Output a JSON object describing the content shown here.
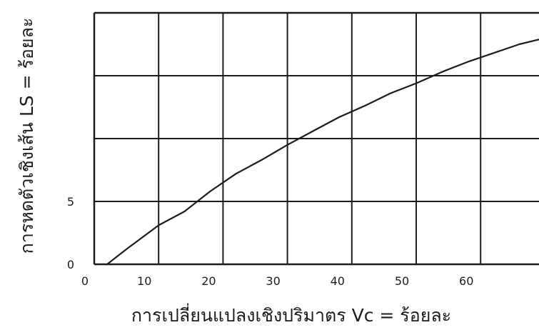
{
  "chart_data": {
    "type": "line",
    "title": "",
    "xlabel": "การเปลี่ยนแปลงเชิงปริมาตร   Vc = ร้อยละ",
    "ylabel": "การหดตัวเชิงเส้น     LS = ร้อยละ",
    "xlim": [
      0,
      70
    ],
    "ylim": [
      0,
      20
    ],
    "x_ticks": [
      0,
      10,
      20,
      30,
      40,
      50,
      60
    ],
    "y_ticks": [
      {
        "value": 0,
        "label": "0"
      },
      {
        "value": 5,
        "label": "5"
      }
    ],
    "grid": true,
    "series": [
      {
        "x": [
          2,
          5,
          10,
          14,
          18,
          22,
          26,
          30,
          34,
          38,
          42,
          46,
          50,
          54,
          58,
          62,
          66,
          70
        ],
        "y": [
          0,
          1.2,
          3.1,
          4.2,
          5.8,
          7.2,
          8.3,
          9.5,
          10.6,
          11.7,
          12.6,
          13.6,
          14.4,
          15.3,
          16.1,
          16.8,
          17.5,
          18.0
        ]
      }
    ],
    "colors": {
      "line": "#1c1c1c",
      "grid": "#1c1c1c"
    }
  }
}
